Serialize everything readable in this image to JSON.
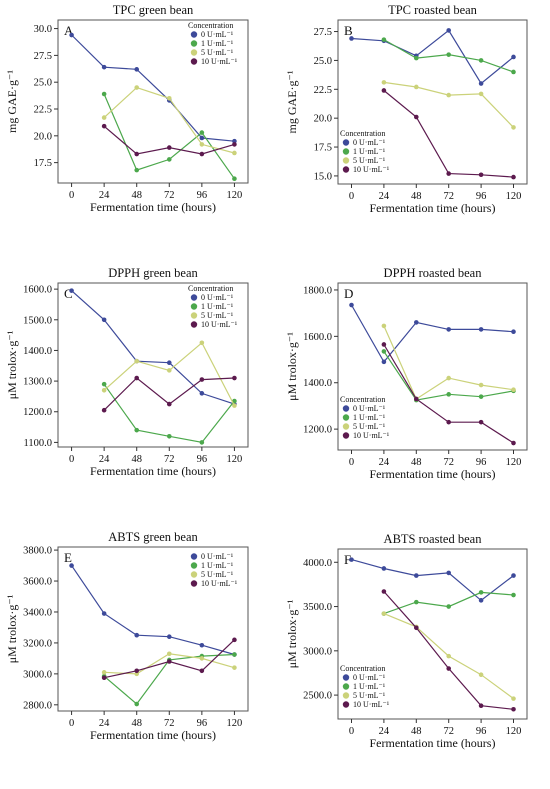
{
  "colors": {
    "0 U·mL⁻¹": "#3d4a9a",
    "1 U·mL⁻¹": "#4ca84c",
    "5 U·mL⁻¹": "#cbd27a",
    "10 U·mL⁻¹": "#5c1a4e"
  },
  "chart_data": [
    {
      "type": "line",
      "panel_label": "A",
      "title": "TPC green bean",
      "xlabel": "Fermentation time (hours)",
      "ylabel": "mg GAE·g⁻¹",
      "x": [
        0,
        24,
        48,
        72,
        96,
        120
      ],
      "xticks": [
        "0",
        "24",
        "48",
        "72",
        "96",
        "120"
      ],
      "xlim": [
        -10,
        130
      ],
      "ylim": [
        15.6,
        30.8
      ],
      "yticks": [
        17.5,
        20.0,
        22.5,
        25.0,
        27.5,
        30.0
      ],
      "ytick_labels": [
        "17.5",
        "20.0",
        "22.5",
        "25.0",
        "27.5",
        "30.0"
      ],
      "legend_title": "Concentration",
      "legend_position": "top-right",
      "series": [
        {
          "name": "0 U·mL⁻¹",
          "x": [
            0,
            24,
            48,
            72,
            96,
            120
          ],
          "values": [
            29.4,
            26.4,
            26.2,
            23.3,
            19.8,
            19.5
          ]
        },
        {
          "name": "1 U·mL⁻¹",
          "x": [
            24,
            48,
            72,
            96,
            120
          ],
          "values": [
            23.9,
            16.8,
            17.8,
            20.3,
            16.0
          ]
        },
        {
          "name": "5 U·mL⁻¹",
          "x": [
            24,
            48,
            72,
            96,
            120
          ],
          "values": [
            21.7,
            24.5,
            23.5,
            19.2,
            18.4
          ]
        },
        {
          "name": "10 U·mL⁻¹",
          "x": [
            24,
            48,
            72,
            96,
            120
          ],
          "values": [
            20.9,
            18.3,
            18.9,
            18.3,
            19.2
          ]
        }
      ]
    },
    {
      "type": "line",
      "panel_label": "B",
      "title": "TPC roasted bean",
      "xlabel": "Fermentation time (hours)",
      "ylabel": "mg GAE·g⁻¹",
      "x": [
        0,
        24,
        48,
        72,
        96,
        120
      ],
      "xticks": [
        "0",
        "24",
        "48",
        "72",
        "96",
        "120"
      ],
      "xlim": [
        -10,
        130
      ],
      "ylim": [
        14.3,
        28.5
      ],
      "yticks": [
        15.0,
        17.5,
        20.0,
        22.5,
        25.0,
        27.5
      ],
      "ytick_labels": [
        "15.0",
        "17.5",
        "20.0",
        "22.5",
        "25.0",
        "27.5"
      ],
      "legend_title": "Concentration",
      "legend_position": "bottom-left",
      "series": [
        {
          "name": "0 U·mL⁻¹",
          "x": [
            0,
            24,
            48,
            72,
            96,
            120
          ],
          "values": [
            26.9,
            26.7,
            25.4,
            27.6,
            23.0,
            25.3
          ]
        },
        {
          "name": "1 U·mL⁻¹",
          "x": [
            24,
            48,
            72,
            96,
            120
          ],
          "values": [
            26.8,
            25.2,
            25.5,
            25.0,
            24.0
          ]
        },
        {
          "name": "5 U·mL⁻¹",
          "x": [
            24,
            48,
            72,
            96,
            120
          ],
          "values": [
            23.1,
            22.7,
            22.0,
            22.1,
            19.2
          ]
        },
        {
          "name": "10 U·mL⁻¹",
          "x": [
            24,
            48,
            72,
            96,
            120
          ],
          "values": [
            22.4,
            20.1,
            15.2,
            15.1,
            14.9
          ]
        }
      ]
    },
    {
      "type": "line",
      "panel_label": "C",
      "title": "DPPH green bean",
      "xlabel": "Fermentation time (hours)",
      "ylabel": "μM trolox·g⁻¹",
      "x": [
        0,
        24,
        48,
        72,
        96,
        120
      ],
      "xticks": [
        "0",
        "24",
        "48",
        "72",
        "96",
        "120"
      ],
      "xlim": [
        -10,
        130
      ],
      "ylim": [
        1085,
        1620
      ],
      "yticks": [
        1100,
        1200,
        1300,
        1400,
        1500,
        1600
      ],
      "ytick_labels": [
        "1100.0",
        "1200.0",
        "1300.0",
        "1400.0",
        "1500.0",
        "1600.0"
      ],
      "legend_title": "Concentration",
      "legend_position": "top-right",
      "series": [
        {
          "name": "0 U·mL⁻¹",
          "x": [
            0,
            24,
            48,
            72,
            96,
            120
          ],
          "values": [
            1595,
            1500,
            1365,
            1360,
            1260,
            1225
          ]
        },
        {
          "name": "1 U·mL⁻¹",
          "x": [
            24,
            48,
            72,
            96,
            120
          ],
          "values": [
            1290,
            1140,
            1120,
            1100,
            1235
          ]
        },
        {
          "name": "5 U·mL⁻¹",
          "x": [
            24,
            48,
            72,
            96,
            120
          ],
          "values": [
            1270,
            1365,
            1335,
            1425,
            1220
          ]
        },
        {
          "name": "10 U·mL⁻¹",
          "x": [
            24,
            48,
            72,
            96,
            120
          ],
          "values": [
            1205,
            1310,
            1225,
            1305,
            1310
          ]
        }
      ]
    },
    {
      "type": "line",
      "panel_label": "D",
      "title": "DPPH roasted bean",
      "xlabel": "Fermentation time (hours)",
      "ylabel": "μM trolox·g⁻¹",
      "x": [
        0,
        24,
        48,
        72,
        96,
        120
      ],
      "xticks": [
        "0",
        "24",
        "48",
        "72",
        "96",
        "120"
      ],
      "xlim": [
        -10,
        130
      ],
      "ylim": [
        1110,
        1830
      ],
      "yticks": [
        1200,
        1400,
        1600,
        1800
      ],
      "ytick_labels": [
        "1200.0",
        "1400.0",
        "1600.0",
        "1800.0"
      ],
      "legend_title": "Concentration",
      "legend_position": "bottom-left",
      "series": [
        {
          "name": "0 U·mL⁻¹",
          "x": [
            0,
            24,
            48,
            72,
            96,
            120
          ],
          "values": [
            1735,
            1490,
            1660,
            1630,
            1630,
            1620
          ]
        },
        {
          "name": "1 U·mL⁻¹",
          "x": [
            24,
            48,
            72,
            96,
            120
          ],
          "values": [
            1535,
            1325,
            1350,
            1340,
            1365
          ]
        },
        {
          "name": "5 U·mL⁻¹",
          "x": [
            24,
            48,
            72,
            96,
            120
          ],
          "values": [
            1645,
            1330,
            1420,
            1390,
            1370
          ]
        },
        {
          "name": "10 U·mL⁻¹",
          "x": [
            24,
            48,
            72,
            96,
            120
          ],
          "values": [
            1565,
            1330,
            1230,
            1230,
            1140
          ]
        }
      ]
    },
    {
      "type": "line",
      "panel_label": "E",
      "title": "ABTS green bean",
      "xlabel": "Fermentation time (hours)",
      "ylabel": "μM trolox·g⁻¹",
      "x": [
        0,
        24,
        48,
        72,
        96,
        120
      ],
      "xticks": [
        "0",
        "24",
        "48",
        "72",
        "96",
        "120"
      ],
      "xlim": [
        -10,
        130
      ],
      "ylim": [
        2760,
        3820
      ],
      "yticks": [
        2800,
        3000,
        3200,
        3400,
        3600,
        3800
      ],
      "ytick_labels": [
        "2800.0",
        "3000.0",
        "3200.0",
        "3400.0",
        "3600.0",
        "3800.0"
      ],
      "legend_title": "",
      "legend_position": "top-right",
      "series": [
        {
          "name": "0 U·mL⁻¹",
          "x": [
            0,
            24,
            48,
            72,
            96,
            120
          ],
          "values": [
            3700,
            3390,
            3250,
            3240,
            3185,
            3125
          ]
        },
        {
          "name": "1 U·mL⁻¹",
          "x": [
            24,
            48,
            72,
            96,
            120
          ],
          "values": [
            2985,
            2805,
            3090,
            3115,
            3125
          ]
        },
        {
          "name": "5 U·mL⁻¹",
          "x": [
            24,
            48,
            72,
            96,
            120
          ],
          "values": [
            3010,
            3000,
            3130,
            3100,
            3040
          ]
        },
        {
          "name": "10 U·mL⁻¹",
          "x": [
            24,
            48,
            72,
            96,
            120
          ],
          "values": [
            2975,
            3020,
            3080,
            3020,
            3220
          ]
        }
      ]
    },
    {
      "type": "line",
      "panel_label": "F",
      "title": "ABTS roasted bean",
      "xlabel": "Fermentation time (hours)",
      "ylabel": "μM trolox·g⁻¹",
      "x": [
        0,
        24,
        48,
        72,
        96,
        120
      ],
      "xticks": [
        "0",
        "24",
        "48",
        "72",
        "96",
        "120"
      ],
      "xlim": [
        -10,
        130
      ],
      "ylim": [
        2230,
        4150
      ],
      "yticks": [
        2500,
        3000,
        3500,
        4000
      ],
      "ytick_labels": [
        "2500.0",
        "3000.0",
        "3500.0",
        "4000.0"
      ],
      "legend_title": "Concentration",
      "legend_position": "bottom-left",
      "series": [
        {
          "name": "0 U·mL⁻¹",
          "x": [
            0,
            24,
            48,
            72,
            96,
            120
          ],
          "values": [
            4030,
            3930,
            3850,
            3880,
            3570,
            3850
          ]
        },
        {
          "name": "1 U·mL⁻¹",
          "x": [
            24,
            48,
            72,
            96,
            120
          ],
          "values": [
            3420,
            3550,
            3500,
            3660,
            3630
          ]
        },
        {
          "name": "5 U·mL⁻¹",
          "x": [
            24,
            48,
            72,
            96,
            120
          ],
          "values": [
            3420,
            3270,
            2940,
            2730,
            2460
          ]
        },
        {
          "name": "10 U·mL⁻¹",
          "x": [
            24,
            48,
            72,
            96,
            120
          ],
          "values": [
            3670,
            3260,
            2800,
            2380,
            2340
          ]
        }
      ]
    }
  ]
}
